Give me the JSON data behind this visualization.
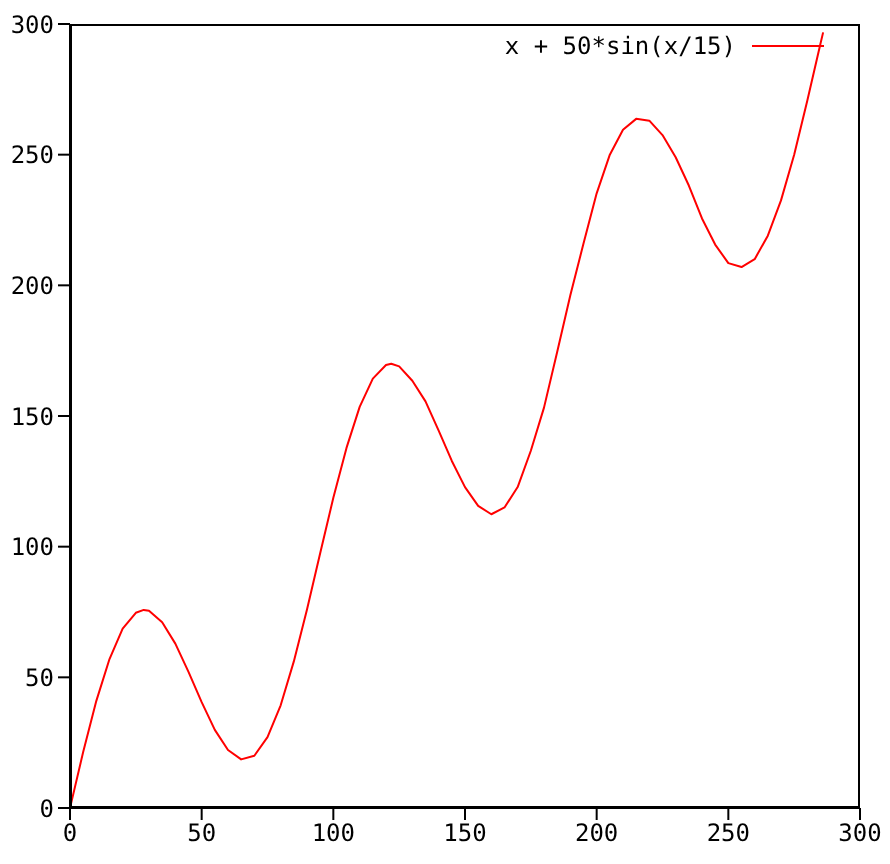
{
  "chart_data": {
    "type": "line",
    "x": [
      0,
      5,
      10,
      15,
      20,
      25,
      28,
      30,
      35,
      40,
      45,
      50,
      55,
      60,
      65,
      70,
      75,
      80,
      85,
      90,
      95,
      100,
      105,
      110,
      115,
      120,
      122,
      125,
      130,
      135,
      140,
      145,
      150,
      155,
      160,
      165,
      170,
      175,
      180,
      185,
      190,
      195,
      200,
      205,
      210,
      215,
      220,
      225,
      230,
      235,
      240,
      245,
      250,
      255,
      260,
      265,
      270,
      275,
      280,
      285,
      286
    ],
    "series": [
      {
        "name": "x + 50*sin(x/15)",
        "color": "#ff0000",
        "values": [
          0,
          21.4,
          41,
          57,
          68.6,
          74.7,
          75.8,
          75.5,
          71.1,
          62.9,
          52.1,
          40.5,
          29.9,
          22.2,
          18.6,
          20,
          27.1,
          39.3,
          56.1,
          76,
          97.5,
          118.7,
          137.8,
          153.5,
          164.3,
          169.5,
          170,
          169,
          163.5,
          155.6,
          144.4,
          132.8,
          122.8,
          115.6,
          112.4,
          115,
          122.8,
          136.7,
          153.2,
          174.5,
          196.2,
          216,
          235.2,
          250,
          259.5,
          263.7,
          263,
          257.5,
          249,
          238.2,
          225.6,
          215.6,
          208.5,
          207,
          210,
          219,
          232.5,
          250,
          270.7,
          292.5,
          296.8
        ]
      }
    ],
    "xlim": [
      0,
      300
    ],
    "xticks": [
      0,
      50,
      100,
      150,
      200,
      250,
      300
    ],
    "ylim": [
      0,
      300
    ],
    "yticks": [
      0,
      50,
      100,
      150,
      200,
      250,
      300
    ],
    "grid": false,
    "legend": "top right",
    "marker": "none",
    "line_style": "solid"
  }
}
